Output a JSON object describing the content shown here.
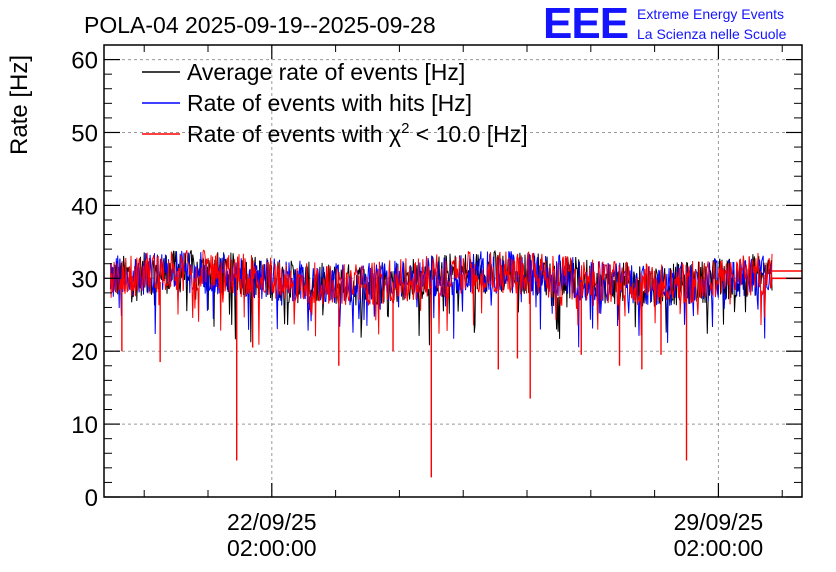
{
  "logo": {
    "mark": "EEE",
    "line1": "Extreme Energy Events",
    "line2": "La Scienza nelle Scuole",
    "color": "#1414ff"
  },
  "chart_data": {
    "type": "line",
    "title": "POLA-04 2025-09-19--2025-09-28",
    "xlabel": "",
    "ylabel": "Rate [Hz]",
    "ylim": [
      0,
      62
    ],
    "yticks": [
      0,
      10,
      20,
      30,
      40,
      50,
      60
    ],
    "xlim_days": [
      -2.63,
      8.31
    ],
    "xticks": [
      {
        "day": 0,
        "date": "22/09/25",
        "time": "02:00:00"
      },
      {
        "day": 7,
        "date": "29/09/25",
        "time": "02:00:00"
      }
    ],
    "x_data_range_days": [
      -2.53,
      7.84
    ],
    "grid": true,
    "legend_position": "top-left",
    "series": [
      {
        "name": "Average rate of events [Hz]",
        "color": "#000000",
        "baseline": 30.0,
        "band": [
          27,
          33
        ]
      },
      {
        "name": "Rate of events with hits [Hz]",
        "color": "#0000ff",
        "baseline": 30.0,
        "band": [
          27,
          33
        ]
      },
      {
        "name": "Rate of events with χ² < 10.0 [Hz]",
        "legend_main": "Rate of events with χ",
        "legend_sup": "2",
        "legend_tail": " < 10.0 [Hz]",
        "color": "#ff0000",
        "baseline": 30.0,
        "band": [
          27,
          33
        ]
      }
    ],
    "trailing_lines": [
      31.0,
      30.0
    ],
    "notable_dips": [
      {
        "day": -0.55,
        "value": 5.0
      },
      {
        "day": 2.5,
        "value": 2.7
      },
      {
        "day": 6.5,
        "value": 5.0
      },
      {
        "day": 4.05,
        "value": 13.5
      },
      {
        "day": 1.05,
        "value": 18.0
      },
      {
        "day": 3.55,
        "value": 17.5
      },
      {
        "day": 5.45,
        "value": 18.0
      },
      {
        "day": -2.35,
        "value": 20.0
      },
      {
        "day": 3.85,
        "value": 19.0
      },
      {
        "day": 4.85,
        "value": 19.5
      },
      {
        "day": 5.8,
        "value": 17.5
      },
      {
        "day": -1.75,
        "value": 18.5
      },
      {
        "day": 6.1,
        "value": 19.5
      },
      {
        "day": -0.3,
        "value": 20.5
      },
      {
        "day": 1.9,
        "value": 20.0
      }
    ]
  }
}
